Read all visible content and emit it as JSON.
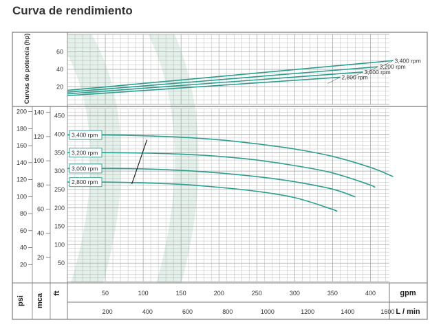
{
  "page": {
    "title": "Curva de rendimiento"
  },
  "colors": {
    "curve": "#2a9d8f",
    "grid": "#9e9e9e",
    "frame": "#7a7a7a",
    "watermark": "#e6f1ec"
  },
  "chart_data": [
    {
      "type": "line",
      "title": "",
      "ylabel": "Curvas de potencia (hp)",
      "xlabel": "",
      "xlim": [
        0,
        425
      ],
      "ylim": [
        0,
        80
      ],
      "yticks": [
        20,
        40,
        60
      ],
      "series": [
        {
          "name": "3,400 rpm",
          "x": [
            0,
            430
          ],
          "y": [
            16,
            50
          ]
        },
        {
          "name": "3,200 rpm",
          "x": [
            0,
            410
          ],
          "y": [
            14,
            43
          ]
        },
        {
          "name": "3,000 rpm",
          "x": [
            0,
            390
          ],
          "y": [
            12,
            37
          ]
        },
        {
          "name": "2,800 rpm",
          "x": [
            0,
            360
          ],
          "y": [
            10,
            31
          ]
        }
      ]
    },
    {
      "type": "line",
      "title": "",
      "xlim": [
        0,
        425
      ],
      "ylim": [
        0,
        470
      ],
      "x_axes": [
        {
          "label": "gpm",
          "ticks": [
            50,
            100,
            150,
            200,
            250,
            300,
            350,
            400
          ]
        },
        {
          "label": "L / min",
          "ticks": [
            200,
            400,
            600,
            800,
            1000,
            1200,
            1400,
            1600
          ]
        }
      ],
      "y_axes": [
        {
          "label": "psi",
          "ticks": [
            20,
            40,
            60,
            80,
            100,
            120,
            140,
            160,
            180,
            200
          ]
        },
        {
          "label": "mca",
          "ticks": [
            20,
            40,
            60,
            80,
            100,
            120,
            140
          ]
        },
        {
          "label": "ft",
          "ticks": [
            50,
            100,
            150,
            200,
            250,
            300,
            350,
            400,
            450
          ]
        }
      ],
      "series": [
        {
          "name": "3,400 rpm",
          "x": [
            0,
            50,
            100,
            150,
            200,
            250,
            300,
            350,
            400,
            430
          ],
          "y": [
            398,
            398,
            396,
            392,
            385,
            374,
            360,
            340,
            310,
            285
          ]
        },
        {
          "name": "3,200 rpm",
          "x": [
            0,
            50,
            100,
            150,
            200,
            250,
            300,
            350,
            400,
            405
          ],
          "y": [
            350,
            350,
            349,
            346,
            340,
            330,
            315,
            295,
            262,
            255
          ]
        },
        {
          "name": "3,000 rpm",
          "x": [
            0,
            50,
            100,
            150,
            200,
            250,
            300,
            350,
            380
          ],
          "y": [
            307,
            307,
            306,
            302,
            295,
            285,
            271,
            251,
            230
          ]
        },
        {
          "name": "2,800 rpm",
          "x": [
            0,
            50,
            100,
            150,
            200,
            250,
            300,
            350,
            355
          ],
          "y": [
            270,
            270,
            268,
            264,
            256,
            245,
            228,
            196,
            190
          ]
        },
        {
          "name": "",
          "x": [
            85,
            105
          ],
          "y": [
            265,
            385
          ]
        }
      ]
    }
  ]
}
